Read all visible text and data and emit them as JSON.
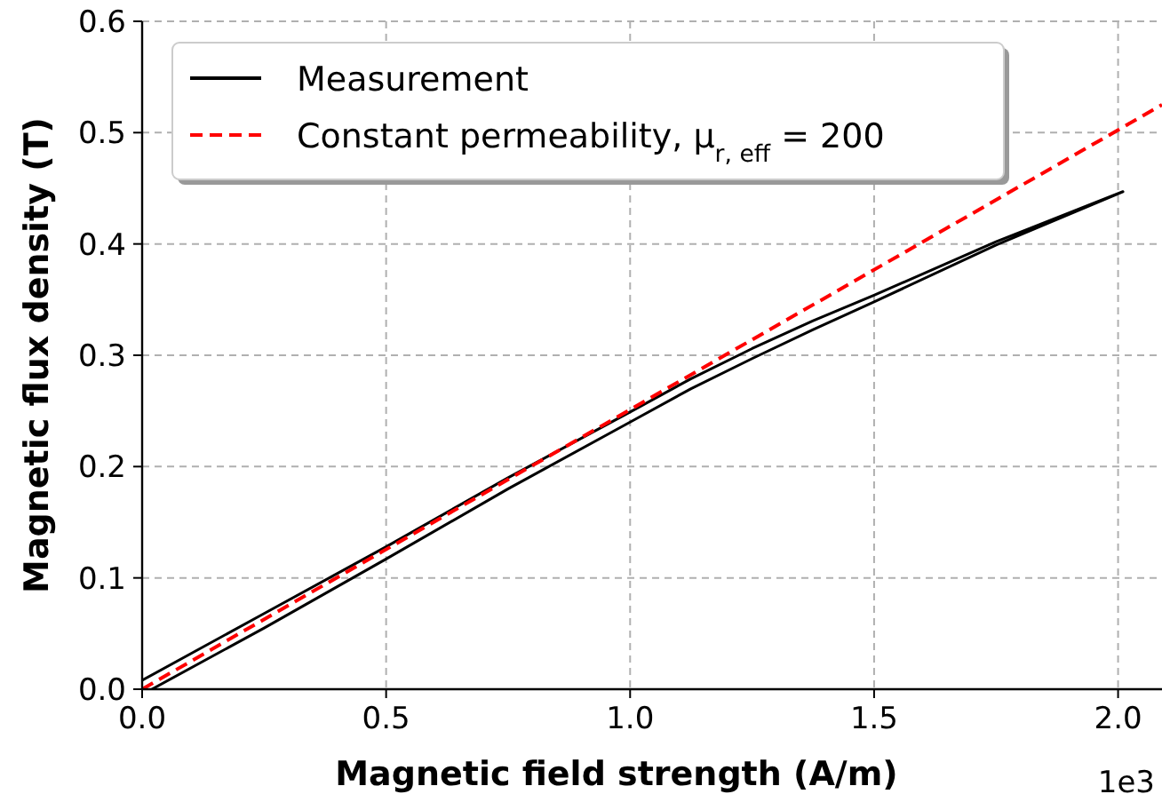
{
  "chart_data": {
    "type": "line",
    "xlabel": "Magnetic field strength (A/m)",
    "ylabel": "Magnetic flux density (T)",
    "xlim": [
      0,
      2.09
    ],
    "ylim": [
      0,
      0.6
    ],
    "xticks": [
      {
        "value": 0,
        "label": "0.0"
      },
      0.5,
      {
        "value": 1,
        "label": "1.0"
      },
      1.5,
      {
        "value": 2,
        "label": "2.0"
      }
    ],
    "yticks": [
      {
        "value": 0,
        "label": "0.0"
      },
      0.1,
      0.2,
      0.3,
      0.4,
      0.5,
      0.6
    ],
    "annotations": [
      "1e3"
    ],
    "grid": true,
    "legend": "top left",
    "series": [
      {
        "name": "Measurement",
        "color": "#000000",
        "line_style": "solid",
        "x": [
          0.02,
          0.25,
          0.5,
          0.75,
          1,
          1.125,
          1.25,
          1.375,
          1.5,
          1.75,
          2.01,
          1.75,
          1.5,
          1.375,
          1.25,
          1.125,
          1,
          0.75,
          0.5,
          0.25,
          0
        ],
        "values": [
          0,
          0.055,
          0.117,
          0.18,
          0.24,
          0.27,
          0.297,
          0.323,
          0.348,
          0.399,
          0.447,
          0.402,
          0.354,
          0.331,
          0.306,
          0.279,
          0.249,
          0.19,
          0.128,
          0.068,
          0.008
        ]
      },
      {
        "name": "Constant permeability, μ$_{r, eff}$ = 200",
        "color": "#ff0000",
        "line_style": "dashed",
        "x": [
          0,
          2.09
        ],
        "values": [
          0,
          0.525
        ]
      }
    ]
  }
}
